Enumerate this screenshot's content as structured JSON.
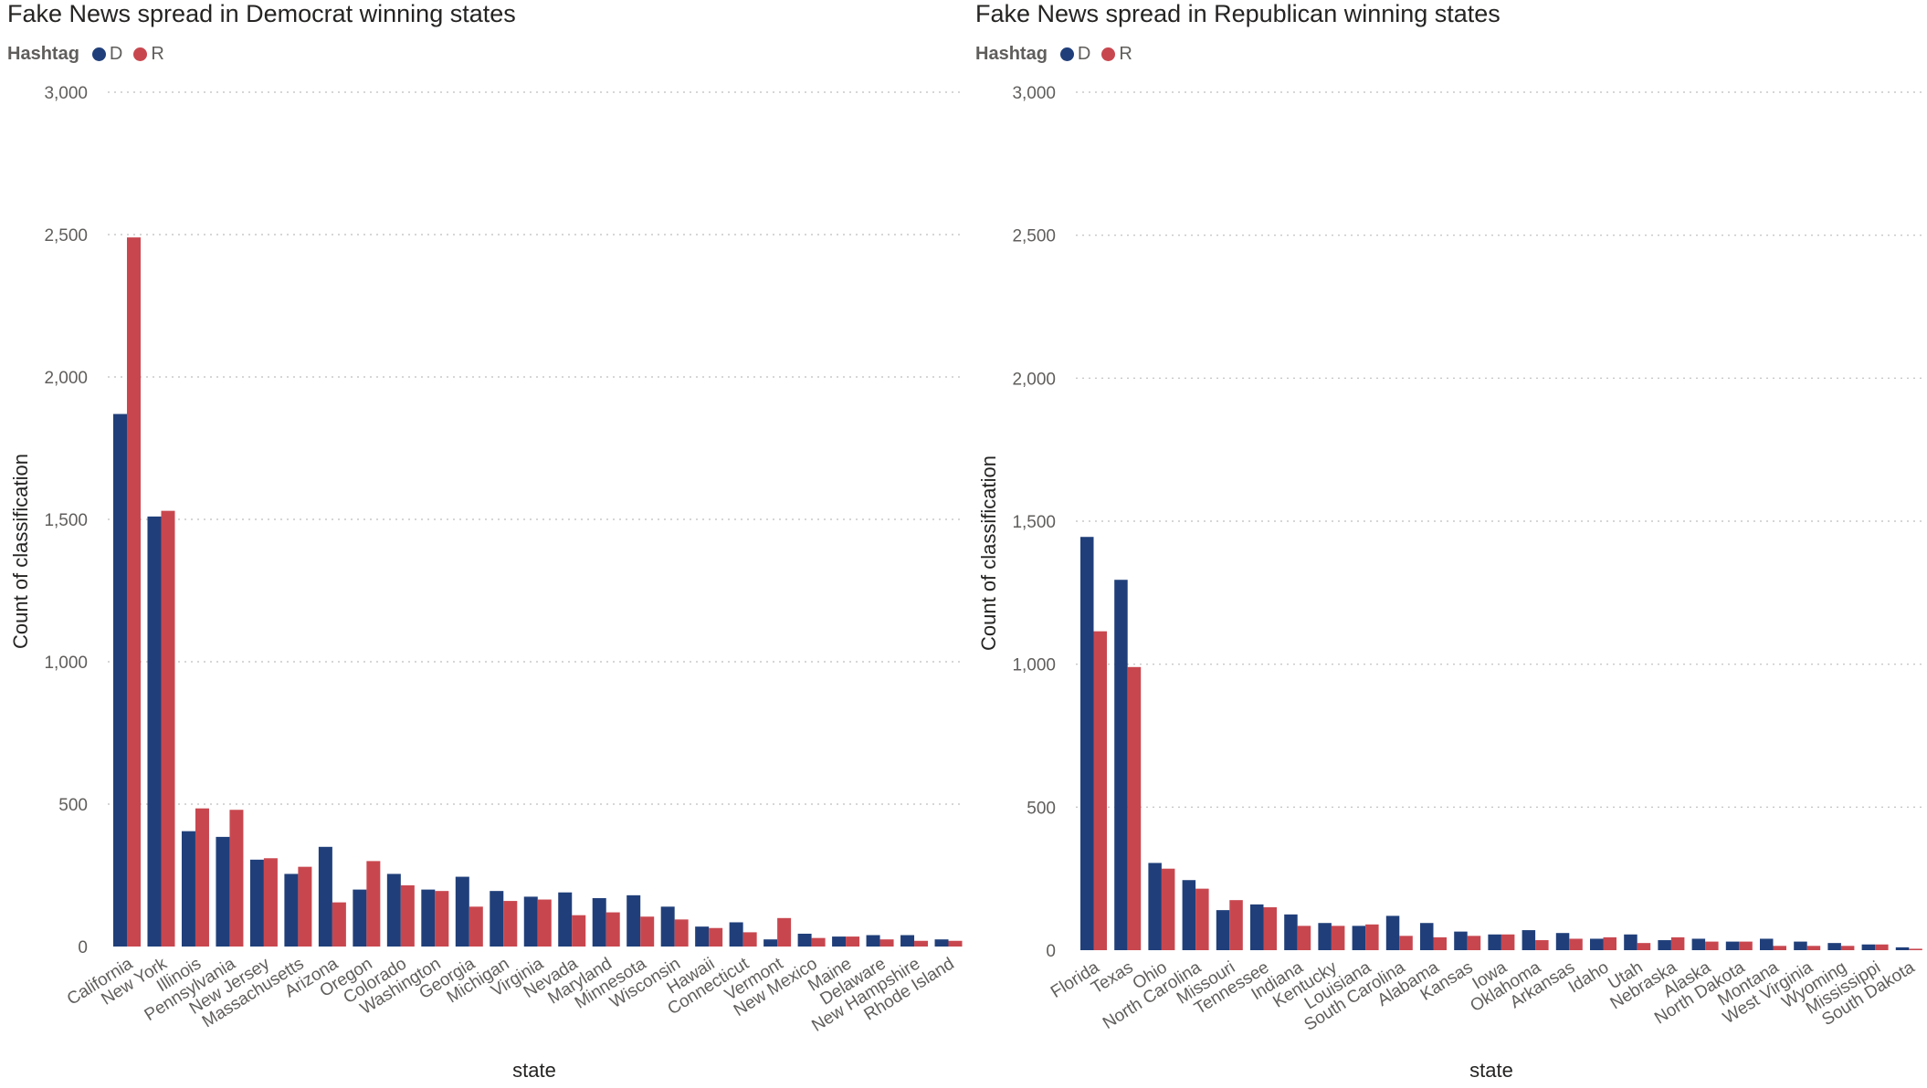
{
  "colors": {
    "D": "#203f7a",
    "R": "#c8474f"
  },
  "chart_data": [
    {
      "type": "bar",
      "title": "Fake News spread in Democrat winning states",
      "legend_title": "Hashtag",
      "legend_position": "top-left",
      "xlabel": "state",
      "ylabel": "Count of classification",
      "ylim": [
        0,
        3000
      ],
      "yticks": [
        "0",
        "500",
        "1,000",
        "1,500",
        "2,000",
        "2,500",
        "3,000"
      ],
      "grid": true,
      "categories": [
        "California",
        "New York",
        "Illinois",
        "Pennsylvania",
        "New Jersey",
        "Massachusetts",
        "Arizona",
        "Oregon",
        "Colorado",
        "Washington",
        "Georgia",
        "Michigan",
        "Virginia",
        "Nevada",
        "Maryland",
        "Minnesota",
        "Wisconsin",
        "Hawaii",
        "Connecticut",
        "Vermont",
        "New Mexico",
        "Maine",
        "Delaware",
        "New Hampshire",
        "Rhode Island"
      ],
      "series": [
        {
          "name": "D",
          "values": [
            1870,
            1510,
            405,
            385,
            305,
            255,
            350,
            200,
            255,
            200,
            245,
            195,
            175,
            190,
            170,
            180,
            140,
            70,
            85,
            25,
            45,
            35,
            40,
            40,
            25
          ]
        },
        {
          "name": "R",
          "values": [
            2490,
            1530,
            485,
            480,
            310,
            280,
            155,
            300,
            215,
            195,
            140,
            160,
            165,
            110,
            120,
            105,
            95,
            65,
            50,
            100,
            30,
            35,
            25,
            20,
            20
          ]
        }
      ]
    },
    {
      "type": "bar",
      "title": "Fake News spread in Republican winning states",
      "legend_title": "Hashtag",
      "legend_position": "top-left",
      "xlabel": "state",
      "ylabel": "Count of classification",
      "ylim": [
        0,
        3000
      ],
      "yticks": [
        "0",
        "500",
        "1,000",
        "1,500",
        "2,000",
        "2,500",
        "3,000"
      ],
      "grid": true,
      "categories": [
        "Florida",
        "Texas",
        "Ohio",
        "North Carolina",
        "Missouri",
        "Tennessee",
        "Indiana",
        "Kentucky",
        "Louisiana",
        "South Carolina",
        "Alabama",
        "Kansas",
        "Iowa",
        "Oklahoma",
        "Arkansas",
        "Idaho",
        "Utah",
        "Nebraska",
        "Alaska",
        "North Dakota",
        "Montana",
        "West Virginia",
        "Wyoming",
        "Mississippi",
        "South Dakota"
      ],
      "series": [
        {
          "name": "D",
          "values": [
            1445,
            1295,
            305,
            245,
            140,
            160,
            125,
            95,
            85,
            120,
            95,
            65,
            55,
            70,
            60,
            40,
            55,
            35,
            40,
            30,
            40,
            30,
            25,
            20,
            10
          ]
        },
        {
          "name": "R",
          "values": [
            1115,
            990,
            285,
            215,
            175,
            150,
            85,
            85,
            90,
            50,
            45,
            50,
            55,
            35,
            40,
            45,
            25,
            45,
            30,
            30,
            15,
            15,
            15,
            20,
            5
          ]
        }
      ]
    }
  ]
}
